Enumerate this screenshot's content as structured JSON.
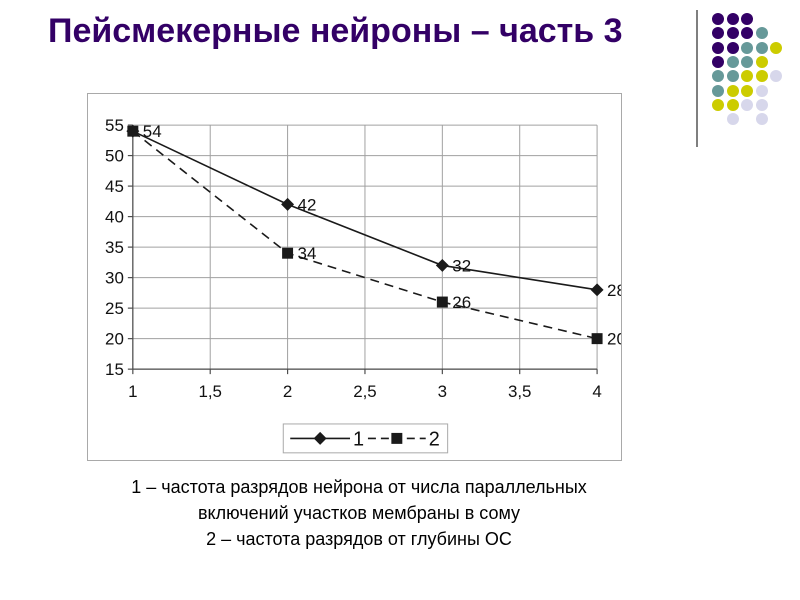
{
  "title": {
    "text": "Пейсмекерные нейроны – часть 3",
    "color": "#330066"
  },
  "caption": {
    "lines": [
      "1 – частота разрядов нейрона от числа параллельных",
      "включений участков мембраны в сому",
      "2 – частота разрядов от глубины ОС"
    ]
  },
  "decoration": {
    "line_color": "#7f7f7f",
    "colors": {
      "P": "#330066",
      "T": "#669999",
      "Y": "#CCCC00",
      "L": "#D7D7EB"
    },
    "rows": [
      "PPP..",
      "PPPT.",
      "PPTTY",
      "PTTY.",
      "TTYYL",
      "TYYL.",
      "YYLL.",
      ".L.L."
    ]
  },
  "chart_data": {
    "type": "line",
    "x": [
      1,
      2,
      3,
      4
    ],
    "xlim": [
      1,
      4
    ],
    "ylim": [
      15,
      55
    ],
    "y_ticks": [
      55,
      50,
      45,
      40,
      35,
      30,
      25,
      20,
      15
    ],
    "x_gridline_step": 0.5,
    "x_tick_labels": [
      "1",
      "1,5",
      "2",
      "2,5",
      "3",
      "3,5",
      "4"
    ],
    "grid": true,
    "legend_position": "bottom-center-boxed",
    "series": [
      {
        "name": "1",
        "marker": "diamond",
        "line": "solid",
        "values": [
          54,
          42,
          32,
          28
        ],
        "point_labels": [
          "",
          "42",
          "32",
          "28"
        ]
      },
      {
        "name": "2",
        "marker": "square",
        "line": "dashed",
        "values": [
          54,
          34,
          26,
          20
        ],
        "point_labels": [
          "54",
          "34",
          "26",
          "20"
        ]
      }
    ],
    "colors": {
      "series": "#1a1a1a",
      "gridline": "#a0a0a0",
      "axis": "#4d4d4d",
      "frame": "#a9a9a9",
      "label": "#111111"
    }
  }
}
